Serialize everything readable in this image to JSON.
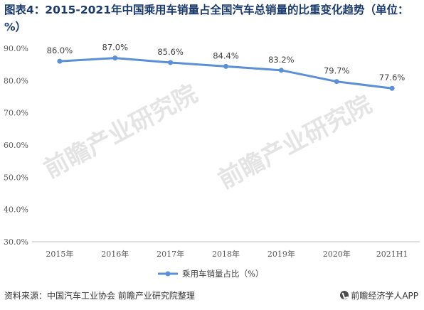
{
  "title": "图表4：2015-2021年中国乘用车销量占全国汽车总销量的比重变化趋势（单位：%）",
  "source": "资料来源：中国汽车工业协会 前瞻产业研究院整理",
  "brand": "前瞻经济学人APP",
  "watermarks": [
    "前瞻产业研究院",
    "前瞻产业研究院"
  ],
  "colors": {
    "line": "#5b8fd6",
    "title": "#1a3a6c",
    "grid": "#d9d9d9"
  },
  "chart_data": {
    "type": "line",
    "categories": [
      "2015年",
      "2016年",
      "2017年",
      "2018年",
      "2019年",
      "2020年",
      "2021H1"
    ],
    "series": [
      {
        "name": "乘用车销量占比（%）",
        "values": [
          86.0,
          87.0,
          85.6,
          84.4,
          83.2,
          79.7,
          77.6
        ],
        "labels": [
          "86.0%",
          "87.0%",
          "85.6%",
          "84.4%",
          "83.2%",
          "79.7%",
          "77.6%"
        ]
      }
    ],
    "yticks": [
      "30.0%",
      "40.0%",
      "50.0%",
      "60.0%",
      "70.0%",
      "80.0%",
      "90.0%"
    ],
    "ylim": [
      30,
      90
    ],
    "grid": false,
    "legend": "bottom-center"
  }
}
